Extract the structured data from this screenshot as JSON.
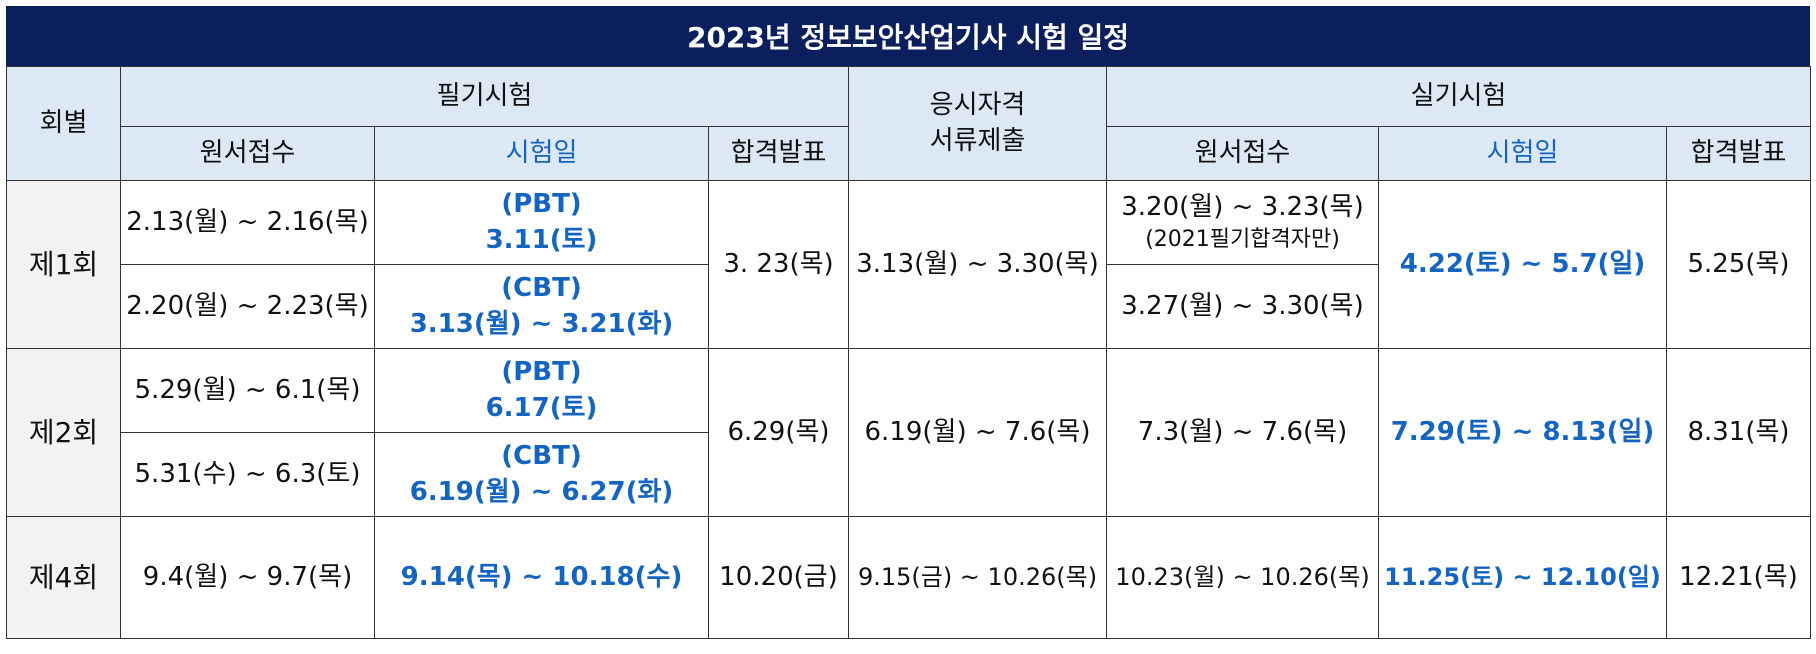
{
  "title": "2023년 정보보안산업기사 시험 일정",
  "headers": {
    "round": "회별",
    "written": "필기시험",
    "qualification_line1": "응시자격",
    "qualification_line2": "서류제출",
    "practical": "실기시험",
    "w_apply": "원서접수",
    "w_exam": "시험일",
    "w_result": "합격발표",
    "p_apply": "원서접수",
    "p_exam": "시험일",
    "p_result": "합격발표"
  },
  "rounds": [
    {
      "label": "제1회",
      "w_apply_a": "2.13(월) ~ 2.16(목)",
      "w_exam_a_line1": "(PBT)",
      "w_exam_a_line2": "3.11(토)",
      "w_apply_b": "2.20(월) ~ 2.23(목)",
      "w_exam_b_line1": "(CBT)",
      "w_exam_b_line2": "3.13(월) ~ 3.21(화)",
      "w_result": "3. 23(목)",
      "qualification": "3.13(월) ~ 3.30(목)",
      "p_apply_a_line1": "3.20(월) ~ 3.23(목)",
      "p_apply_a_line2": "(2021필기합격자만)",
      "p_apply_b": "3.27(월) ~ 3.30(목)",
      "p_exam": "4.22(토) ~ 5.7(일)",
      "p_result": "5.25(목)"
    },
    {
      "label": "제2회",
      "w_apply_a": "5.29(월) ~ 6.1(목)",
      "w_exam_a_line1": "(PBT)",
      "w_exam_a_line2": "6.17(토)",
      "w_apply_b": "5.31(수) ~ 6.3(토)",
      "w_exam_b_line1": "(CBT)",
      "w_exam_b_line2": "6.19(월) ~ 6.27(화)",
      "w_result": "6.29(목)",
      "qualification": "6.19(월) ~ 7.6(목)",
      "p_apply": "7.3(월) ~ 7.6(목)",
      "p_exam": "7.29(토) ~ 8.13(일)",
      "p_result": "8.31(목)"
    },
    {
      "label": "제4회",
      "w_apply": "9.4(월) ~ 9.7(목)",
      "w_exam": "9.14(목) ~ 10.18(수)",
      "w_result": "10.20(금)",
      "qualification": "9.15(금) ~ 10.26(목)",
      "p_apply": "10.23(월) ~ 10.26(목)",
      "p_exam": "11.25(토) ~ 12.10(일)",
      "p_result": "12.21(목)"
    }
  ],
  "colors": {
    "title_bg": "#0b1f5c",
    "header_bg": "#dde8f5",
    "round_bg": "#f2f2f2",
    "accent_blue": "#1464c0"
  }
}
